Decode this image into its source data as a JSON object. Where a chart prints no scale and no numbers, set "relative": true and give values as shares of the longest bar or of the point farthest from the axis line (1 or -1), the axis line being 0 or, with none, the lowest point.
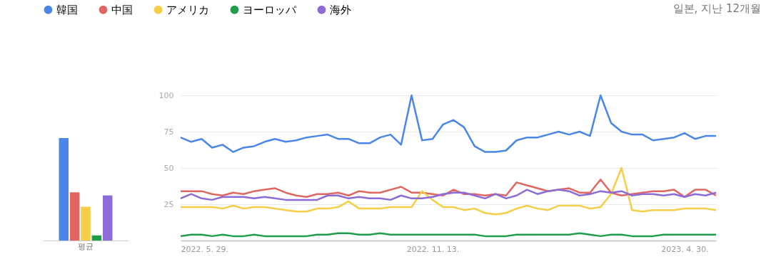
{
  "chart_data": [
    {
      "type": "bar",
      "relative": true,
      "categories": [
        "평균"
      ],
      "legend": "top right",
      "series": [
        {
          "name": "韓国",
          "color": "#4a86e8",
          "values": [
            1
          ]
        },
        {
          "name": "中国",
          "color": "#e06661",
          "values": [
            0.47
          ]
        },
        {
          "name": "アメリカ",
          "color": "#f5cd47",
          "values": [
            0.33
          ]
        },
        {
          "name": "ヨーロッパ",
          "color": "#1e9e48",
          "values": [
            0.05
          ]
        },
        {
          "name": "海外",
          "color": "#8c6bd6",
          "values": [
            0.44
          ]
        }
      ]
    },
    {
      "type": "line",
      "annotations": [
        "일본, 지난 12개월"
      ],
      "grid": "y",
      "legend": "top left",
      "ylim": [
        0,
        100
      ],
      "yticks": [
        25,
        50,
        75,
        100
      ],
      "xlim": [
        "2022-05-29",
        "2023-05-21"
      ],
      "xticks": [
        {
          "value": "2022-05-29",
          "label": "2022. 5. 29."
        },
        {
          "value": "2022-11-13",
          "label": "2022. 11. 13."
        },
        {
          "value": "2023-04-30",
          "label": "2023. 4. 30."
        }
      ],
      "x": [
        "2022-05-29",
        "2022-06-05",
        "2022-06-12",
        "2022-06-19",
        "2022-06-26",
        "2022-07-03",
        "2022-07-10",
        "2022-07-17",
        "2022-07-24",
        "2022-07-31",
        "2022-08-07",
        "2022-08-14",
        "2022-08-21",
        "2022-08-28",
        "2022-09-04",
        "2022-09-11",
        "2022-09-18",
        "2022-09-25",
        "2022-10-02",
        "2022-10-09",
        "2022-10-16",
        "2022-10-23",
        "2022-10-30",
        "2022-11-06",
        "2022-11-13",
        "2022-11-20",
        "2022-11-27",
        "2022-12-04",
        "2022-12-11",
        "2022-12-18",
        "2022-12-25",
        "2023-01-01",
        "2023-01-08",
        "2023-01-15",
        "2023-01-22",
        "2023-01-29",
        "2023-02-05",
        "2023-02-12",
        "2023-02-19",
        "2023-02-26",
        "2023-03-05",
        "2023-03-12",
        "2023-03-19",
        "2023-03-26",
        "2023-04-02",
        "2023-04-09",
        "2023-04-16",
        "2023-04-23",
        "2023-04-30",
        "2023-05-07",
        "2023-05-14",
        "2023-05-21"
      ],
      "series": [
        {
          "name": "韓国",
          "color": "#4a86e8",
          "values": [
            71,
            68,
            70,
            64,
            66,
            61,
            64,
            65,
            68,
            70,
            68,
            69,
            71,
            72,
            73,
            70,
            70,
            67,
            67,
            71,
            73,
            66,
            100,
            69,
            70,
            80,
            83,
            78,
            65,
            61,
            61,
            62,
            69,
            71,
            71,
            73,
            75,
            73,
            75,
            72,
            100,
            81,
            75,
            73,
            73,
            69,
            70,
            71,
            74,
            70,
            72,
            72
          ]
        },
        {
          "name": "中国",
          "color": "#e06661",
          "values": [
            34,
            34,
            34,
            32,
            31,
            33,
            32,
            34,
            35,
            36,
            33,
            31,
            30,
            32,
            32,
            33,
            31,
            34,
            33,
            33,
            35,
            37,
            33,
            33,
            32,
            31,
            35,
            32,
            32,
            31,
            32,
            31,
            40,
            38,
            36,
            34,
            35,
            36,
            33,
            33,
            42,
            33,
            31,
            32,
            33,
            34,
            34,
            35,
            30,
            35,
            35,
            31
          ]
        },
        {
          "name": "アメリカ",
          "color": "#f5cd47",
          "values": [
            23,
            23,
            23,
            23,
            22,
            24,
            22,
            23,
            23,
            22,
            21,
            20,
            20,
            22,
            22,
            23,
            27,
            22,
            22,
            22,
            23,
            23,
            23,
            34,
            28,
            23,
            23,
            21,
            22,
            19,
            18,
            19,
            22,
            24,
            22,
            21,
            24,
            24,
            24,
            22,
            23,
            32,
            50,
            21,
            20,
            21,
            21,
            21,
            22,
            22,
            22,
            21
          ]
        },
        {
          "name": "ヨーロッパ",
          "color": "#1e9e48",
          "values": [
            3,
            4,
            4,
            3,
            4,
            3,
            3,
            4,
            3,
            3,
            3,
            3,
            3,
            4,
            4,
            5,
            5,
            4,
            4,
            5,
            4,
            4,
            4,
            4,
            4,
            4,
            4,
            4,
            4,
            3,
            3,
            3,
            4,
            4,
            4,
            4,
            4,
            4,
            5,
            4,
            3,
            4,
            4,
            3,
            3,
            3,
            4,
            4,
            4,
            4,
            4,
            4
          ]
        },
        {
          "name": "海外",
          "color": "#8c6bd6",
          "values": [
            29,
            32,
            29,
            28,
            30,
            30,
            30,
            29,
            30,
            29,
            28,
            28,
            28,
            28,
            31,
            31,
            29,
            30,
            29,
            29,
            28,
            31,
            29,
            29,
            30,
            32,
            33,
            33,
            31,
            29,
            32,
            29,
            31,
            35,
            32,
            34,
            35,
            34,
            31,
            32,
            34,
            33,
            34,
            31,
            32,
            32,
            31,
            32,
            30,
            32,
            31,
            33
          ]
        }
      ]
    }
  ]
}
